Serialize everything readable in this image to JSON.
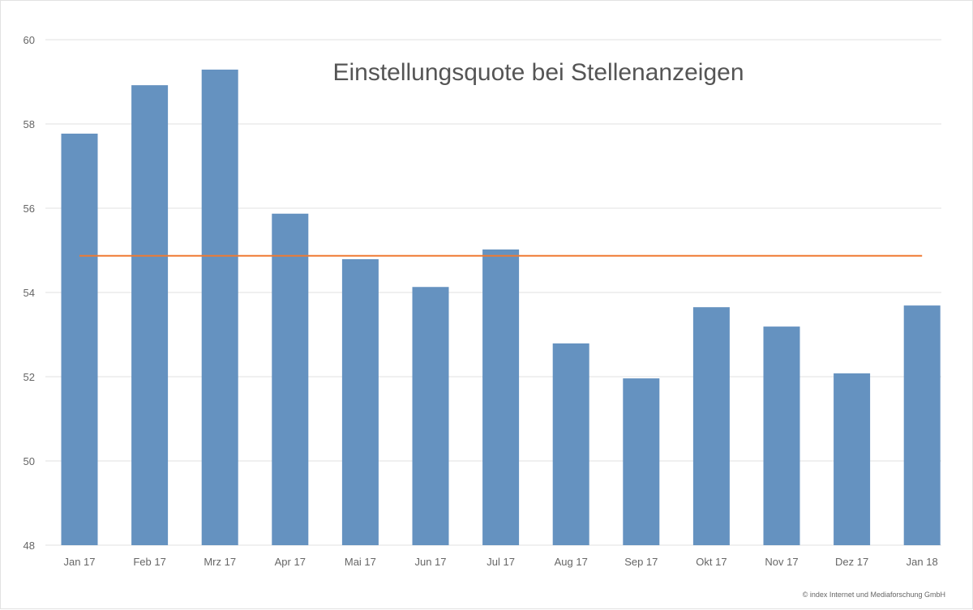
{
  "chart_data": {
    "type": "bar",
    "title": "Einstellungsquote bei Stellenanzeigen",
    "xlabel": "",
    "ylabel": "",
    "categories": [
      "Jan 17",
      "Feb 17",
      "Mrz 17",
      "Apr 17",
      "Mai 17",
      "Jun 17",
      "Jul 17",
      "Aug 17",
      "Sep 17",
      "Okt 17",
      "Nov 17",
      "Dez 17",
      "Jan 18"
    ],
    "values": [
      57.77,
      58.92,
      59.29,
      55.87,
      54.79,
      54.13,
      55.02,
      52.79,
      51.96,
      53.65,
      53.19,
      52.08,
      53.69
    ],
    "reference_line": 54.87,
    "ylim": [
      48,
      60
    ],
    "yticks": [
      48,
      50,
      52,
      54,
      56,
      58,
      60
    ],
    "grid": true,
    "colors": {
      "bar": "#6592c0",
      "reference_line": "#ef7a32",
      "grid": "#ececec"
    }
  },
  "credit": "© index Internet und Mediaforschung GmbH"
}
